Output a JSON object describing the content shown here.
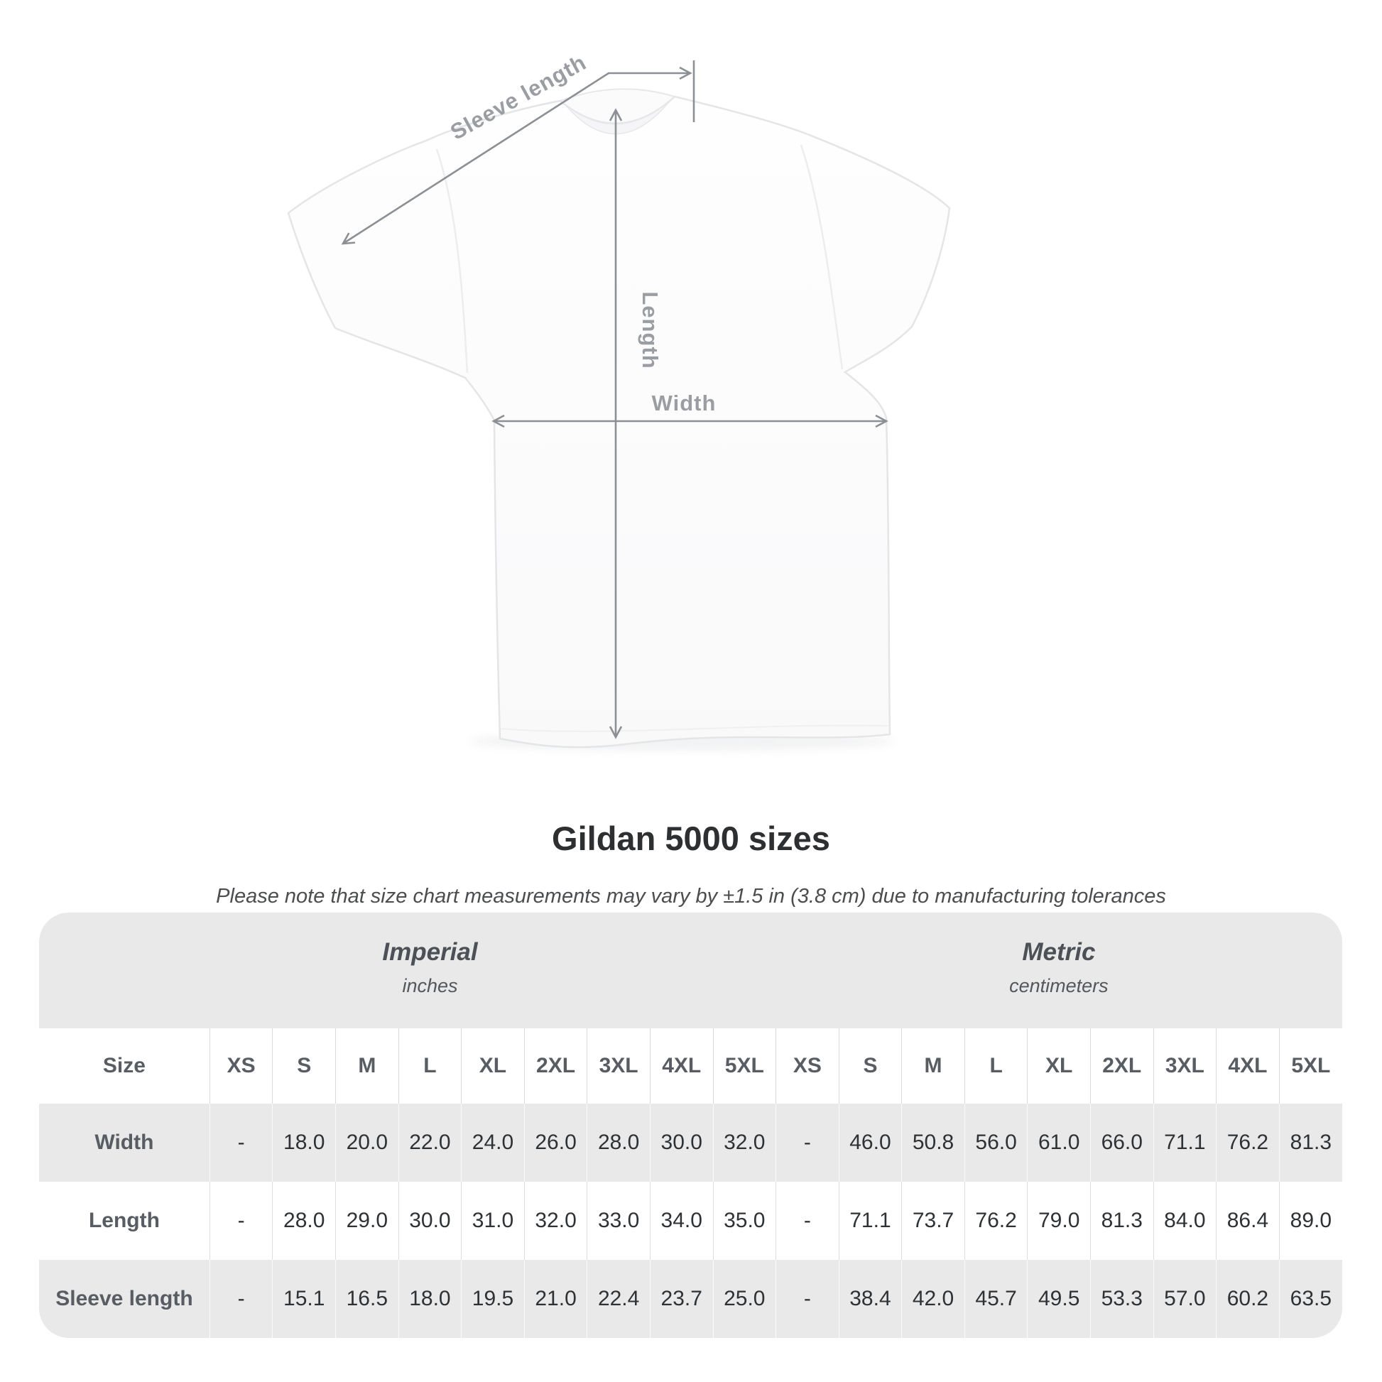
{
  "diagram": {
    "sleeve_label": "Sleeve length",
    "length_label": "Length",
    "width_label": "Width"
  },
  "title": "Gildan 5000 sizes",
  "subtitle": "Please note that size chart measurements may vary by ±1.5 in (3.8 cm) due to manufacturing tolerances",
  "table": {
    "unit_groups": [
      {
        "name": "Imperial",
        "unit": "inches"
      },
      {
        "name": "Metric",
        "unit": "centimeters"
      }
    ],
    "size_column_header": "Size",
    "sizes": [
      "XS",
      "S",
      "M",
      "L",
      "XL",
      "2XL",
      "3XL",
      "4XL",
      "5XL"
    ],
    "rows": [
      {
        "label": "Width",
        "imperial": [
          "-",
          "18.0",
          "20.0",
          "22.0",
          "24.0",
          "26.0",
          "28.0",
          "30.0",
          "32.0"
        ],
        "metric": [
          "-",
          "46.0",
          "50.8",
          "56.0",
          "61.0",
          "66.0",
          "71.1",
          "76.2",
          "81.3"
        ]
      },
      {
        "label": "Length",
        "imperial": [
          "-",
          "28.0",
          "29.0",
          "30.0",
          "31.0",
          "32.0",
          "33.0",
          "34.0",
          "35.0"
        ],
        "metric": [
          "-",
          "71.1",
          "73.7",
          "76.2",
          "79.0",
          "81.3",
          "84.0",
          "86.4",
          "89.0"
        ]
      },
      {
        "label": "Sleeve length",
        "imperial": [
          "-",
          "15.1",
          "16.5",
          "18.0",
          "19.5",
          "21.0",
          "22.4",
          "23.7",
          "25.0"
        ],
        "metric": [
          "-",
          "38.4",
          "42.0",
          "45.7",
          "49.5",
          "53.3",
          "57.0",
          "60.2",
          "63.5"
        ]
      }
    ]
  },
  "colors": {
    "panel_background": "#e9e9ea",
    "measurement_line": "#8c9094",
    "measurement_label": "#9a9ea2",
    "table_header_text": "#575d63",
    "table_value_text": "#2f3235",
    "title_text": "#2d2f31"
  }
}
